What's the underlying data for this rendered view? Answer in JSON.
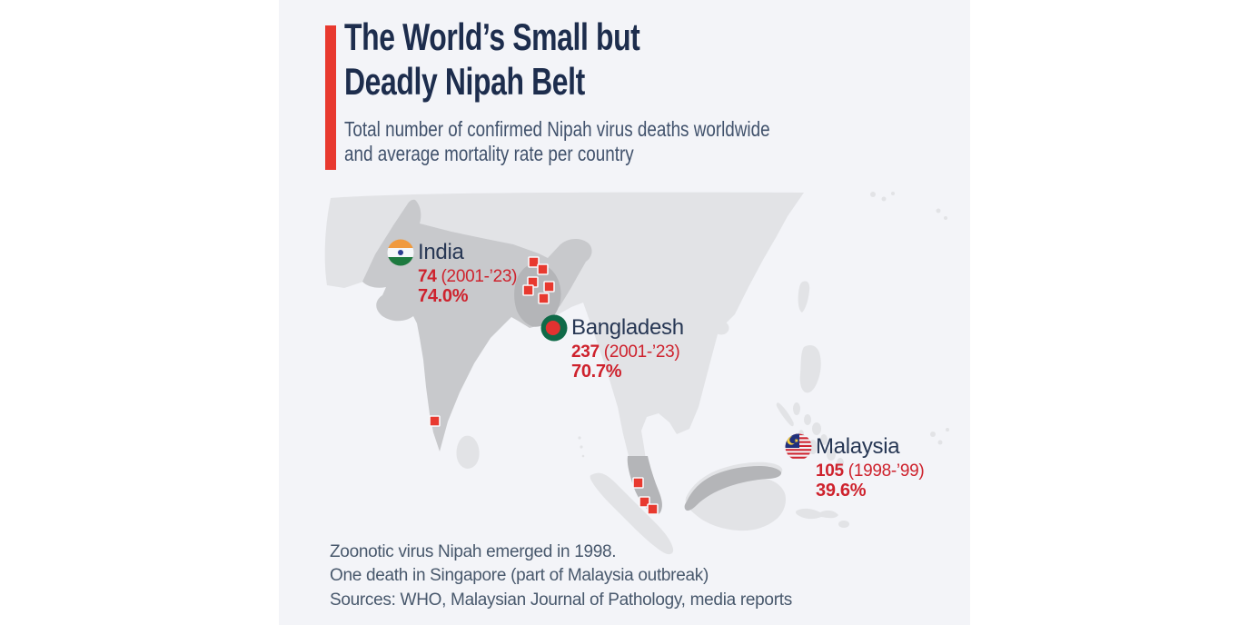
{
  "header": {
    "title_line1": "The World’s Small but",
    "title_line2": "Deadly Nipah Belt",
    "subtitle_line1": "Total number of confirmed Nipah virus deaths worldwide",
    "subtitle_line2": "and average mortality rate per country"
  },
  "countries": [
    {
      "id": "india",
      "name": "India",
      "deaths": "74",
      "period": "(2001-’23)",
      "mortality_rate": "74.0%"
    },
    {
      "id": "bangladesh",
      "name": "Bangladesh",
      "deaths": "237",
      "period": "(2001-’23)",
      "mortality_rate": "70.7%"
    },
    {
      "id": "malaysia",
      "name": "Malaysia",
      "deaths": "105",
      "period": "(1998-’99)",
      "mortality_rate": "39.6%"
    }
  ],
  "footnotes": {
    "line1": "Zoonotic virus Nipah emerged in 1998.",
    "line2": "One death in Singapore (part of Malaysia outbreak)",
    "line3": "Sources: WHO, Malaysian Journal of Pathology, media reports"
  },
  "icons": {
    "india_flag": "india-flag-icon",
    "bangladesh_flag": "bangladesh-flag-icon",
    "malaysia_flag": "malaysia-flag-icon"
  },
  "colors": {
    "accent_red": "#e8392f",
    "text_red": "#ce222d",
    "title_navy": "#1d2d4d",
    "name_navy": "#273754",
    "subtitle_slate": "#41526c",
    "footnote_slate": "#48586c",
    "panel_bg": "#f3f4f8",
    "land_light": "#e2e3e6",
    "land_india": "#c8c9cc",
    "land_dark": "#b4b5b8",
    "marker_stroke": "#f8f9fb"
  },
  "chart_data": {
    "type": "map",
    "title": "The World’s Small but Deadly Nipah Belt",
    "subtitle": "Total number of confirmed Nipah virus deaths worldwide and average mortality rate per country",
    "series": [
      {
        "country": "India",
        "deaths": 74,
        "period": "2001-’23",
        "avg_mortality_rate_pct": 74.0
      },
      {
        "country": "Bangladesh",
        "deaths": 237,
        "period": "2001-’23",
        "avg_mortality_rate_pct": 70.7
      },
      {
        "country": "Malaysia",
        "deaths": 105,
        "period": "1998-’99",
        "avg_mortality_rate_pct": 39.6
      }
    ],
    "marker_size": 11,
    "outbreak_markers": {
      "bangladesh_india_cluster": [
        [
          275,
          73
        ],
        [
          285,
          81
        ],
        [
          274,
          95
        ],
        [
          292,
          100
        ],
        [
          269,
          104
        ],
        [
          286,
          113
        ]
      ],
      "south_india": [
        [
          166,
          248
        ]
      ],
      "malaysia_peninsula": [
        [
          390,
          316
        ],
        [
          397,
          337
        ],
        [
          406,
          345
        ]
      ]
    }
  }
}
